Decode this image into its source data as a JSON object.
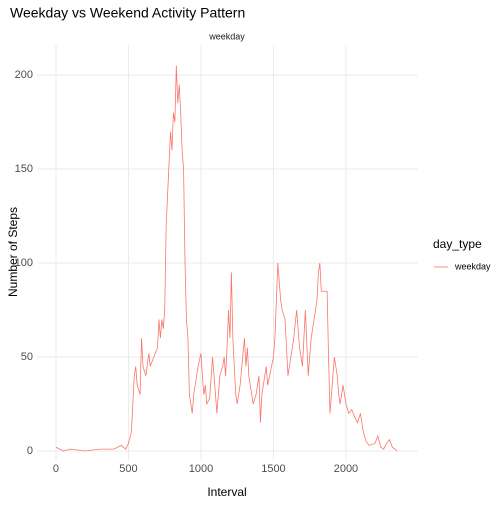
{
  "chart_data": {
    "type": "line",
    "title": "Weekday vs Weekend Activity Pattern",
    "facet": "weekday",
    "x_label": "Interval",
    "y_label": "Number of Steps",
    "legend_title": "day_type",
    "legend": "right",
    "grid": true,
    "xlim": [
      -131,
      2497
    ],
    "ylim": [
      -4.8,
      216
    ],
    "xticks": [
      0,
      500,
      1000,
      1500,
      2000
    ],
    "yticks": [
      0,
      50,
      100,
      150,
      200
    ],
    "x": [
      0,
      25,
      50,
      100,
      200,
      300,
      400,
      450,
      480,
      500,
      520,
      540,
      550,
      560,
      580,
      590,
      600,
      620,
      640,
      650,
      700,
      710,
      720,
      730,
      740,
      750,
      760,
      790,
      800,
      810,
      820,
      830,
      840,
      850,
      860,
      870,
      880,
      890,
      900,
      910,
      920,
      930,
      940,
      950,
      960,
      980,
      1000,
      1010,
      1020,
      1030,
      1040,
      1060,
      1080,
      1100,
      1110,
      1130,
      1150,
      1160,
      1170,
      1180,
      1190,
      1200,
      1210,
      1220,
      1230,
      1240,
      1250,
      1270,
      1300,
      1310,
      1320,
      1330,
      1340,
      1350,
      1360,
      1380,
      1400,
      1410,
      1420,
      1440,
      1450,
      1460,
      1500,
      1510,
      1520,
      1530,
      1540,
      1550,
      1560,
      1580,
      1600,
      1620,
      1640,
      1660,
      1680,
      1700,
      1720,
      1740,
      1760,
      1780,
      1800,
      1810,
      1820,
      1830,
      1850,
      1870,
      1880,
      1890,
      1900,
      1920,
      1940,
      1950,
      1960,
      1980,
      2000,
      2020,
      2040,
      2060,
      2080,
      2100,
      2120,
      2140,
      2160,
      2200,
      2220,
      2240,
      2260,
      2280,
      2300,
      2320,
      2355
    ],
    "series": [
      {
        "name": "weekday",
        "color": "#F8766D",
        "values": [
          2,
          1,
          0,
          1,
          0,
          1,
          1,
          3,
          1,
          4,
          10,
          40,
          45,
          35,
          30,
          60,
          45,
          40,
          52,
          45,
          55,
          70,
          60,
          70,
          65,
          75,
          120,
          170,
          160,
          180,
          175,
          205,
          185,
          195,
          180,
          160,
          150,
          100,
          70,
          60,
          30,
          25,
          20,
          30,
          35,
          45,
          52,
          40,
          30,
          35,
          25,
          28,
          50,
          30,
          20,
          40,
          45,
          50,
          40,
          55,
          75,
          60,
          95,
          60,
          45,
          30,
          25,
          35,
          60,
          45,
          55,
          40,
          35,
          30,
          25,
          30,
          40,
          15,
          30,
          40,
          45,
          35,
          50,
          60,
          80,
          100,
          90,
          80,
          75,
          70,
          40,
          50,
          60,
          75,
          55,
          45,
          75,
          40,
          60,
          70,
          80,
          95,
          100,
          85,
          85,
          85,
          50,
          20,
          30,
          50,
          40,
          30,
          25,
          35,
          25,
          20,
          22,
          18,
          15,
          20,
          10,
          5,
          3,
          4,
          8,
          2,
          1,
          4,
          6,
          2,
          0
        ]
      }
    ]
  }
}
